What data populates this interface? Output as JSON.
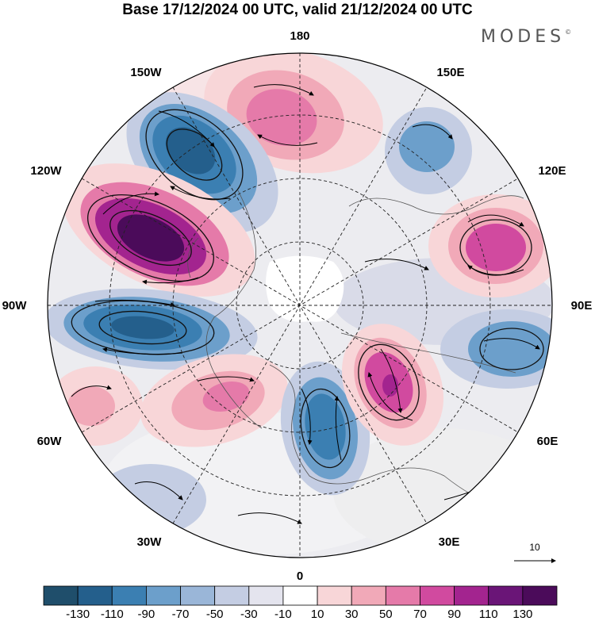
{
  "title": "Base 17/12/2024 00 UTC, valid 21/12/2024 00 UTC",
  "brand": {
    "name": "MODES",
    "mark": "©"
  },
  "longitude_labels": {
    "lon_180": "180",
    "lon_150E": "150E",
    "lon_120E": "120E",
    "lon_90E": "90E",
    "lon_60E": "60E",
    "lon_30E": "30E",
    "lon_0": "0",
    "lon_30W": "30W",
    "lon_60W": "60W",
    "lon_90W": "90W",
    "lon_120W": "120W",
    "lon_150W": "150W"
  },
  "vector_reference": {
    "value": "10"
  },
  "colorbar": {
    "tick_labels": [
      "-130",
      "-110",
      "-90",
      "-70",
      "-50",
      "-30",
      "-10",
      "10",
      "30",
      "50",
      "70",
      "90",
      "110",
      "130"
    ],
    "colors": [
      "#1f4e6b",
      "#245f8c",
      "#3b7fb2",
      "#6c9fcb",
      "#9ab6d8",
      "#c4cde3",
      "#e4e4ee",
      "#ffffff",
      "#f8d6d8",
      "#f1a9b8",
      "#e57aa9",
      "#d14a9f",
      "#a3248f",
      "#6a1577",
      "#4b0b5a"
    ]
  },
  "map": {
    "projection": "north-polar-stereographic",
    "field": "anomaly",
    "vectors": "wind"
  }
}
